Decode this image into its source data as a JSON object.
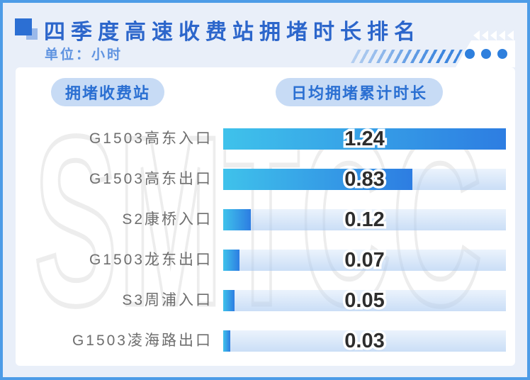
{
  "header": {
    "title": "四季度高速收费站拥堵时长排名",
    "unit_label": "单位：小时",
    "decorations": {
      "chevron_count": 5,
      "dot_count": 3
    }
  },
  "columns": {
    "left": "拥堵收费站",
    "right": "日均拥堵累计时长"
  },
  "watermark": "SMTCC",
  "colors": {
    "page_background": "#e9eff9",
    "frame_border": "#4d9ce7",
    "title_blue": "#2c66cb",
    "unit_blue": "#5f93e0",
    "pill_background": "#c7dbf5",
    "pill_text": "#2a6fd2",
    "bar_gradient_start": "#3fc2eb",
    "bar_gradient_end": "#2d7de2",
    "label_gray": "#6e6e6e",
    "value_text": "#2d2d2d"
  },
  "chart_data": {
    "type": "bar",
    "orientation": "horizontal",
    "title": "四季度高速收费站拥堵时长排名",
    "unit": "小时",
    "categories": [
      "G1503高东入口",
      "G1503高东出口",
      "S2康桥入口",
      "G1503龙东出口",
      "S3周浦入口",
      "G1503凌海路出口"
    ],
    "values": [
      1.24,
      0.83,
      0.12,
      0.07,
      0.05,
      0.03
    ],
    "xlim": [
      0,
      1.24
    ],
    "grid": false,
    "legend": false,
    "value_label_position": "centered-on-track"
  }
}
